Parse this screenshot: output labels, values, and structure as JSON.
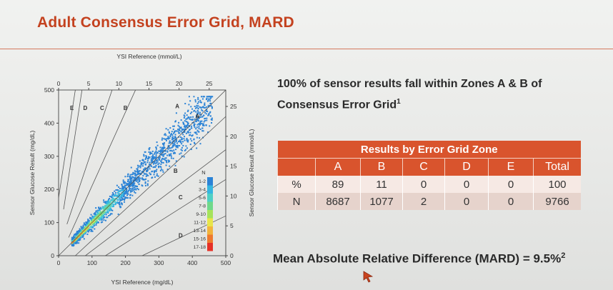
{
  "slide": {
    "title": "Adult Consensus Error Grid, MARD",
    "headline_prefix": "100% of sensor results fall within Zones A & B of Consensus Error Grid",
    "headline_sup": "1",
    "mard_prefix": "Mean Absolute Relative Difference (MARD) = 9.5%",
    "mard_sup": "2"
  },
  "results_table": {
    "caption": "Results by Error Grid Zone",
    "columns": [
      "",
      "A",
      "B",
      "C",
      "D",
      "E",
      "Total"
    ],
    "rows": [
      [
        "%",
        "89",
        "11",
        "0",
        "0",
        "0",
        "100"
      ],
      [
        "N",
        "8687",
        "1077",
        "2",
        "0",
        "0",
        "9766"
      ]
    ]
  },
  "chart_data": {
    "type": "scatter",
    "xlabel": "YSI Reference (mg/dL)",
    "ylabel": "Sensor Glucose Result (mg/dL)",
    "top_xlabel": "YSI Reference (mmol/L)",
    "right_ylabel": "Sensor Glucose Result (mmol/L)",
    "xlim": [
      0,
      500
    ],
    "ylim": [
      0,
      500
    ],
    "x_ticks": [
      "0",
      "100",
      "200",
      "300",
      "400",
      "500"
    ],
    "y_ticks": [
      "0",
      "100",
      "200",
      "300",
      "400",
      "500"
    ],
    "top_ticks": [
      "0",
      "5",
      "10",
      "15",
      "20",
      "25"
    ],
    "right_ticks": [
      "0",
      "5",
      "10",
      "15",
      "20",
      "25"
    ],
    "zone_labels": [
      "E",
      "D",
      "C",
      "B",
      "A",
      "A",
      "B",
      "C",
      "D"
    ],
    "density_legend_title": "N",
    "density_legend": [
      "1-2",
      "3-4",
      "5-6",
      "7-8",
      "9-10",
      "11-12",
      "13-14",
      "15-16",
      "17-18"
    ],
    "density_colors": [
      "#2b83d6",
      "#36b6e0",
      "#4fd0c5",
      "#6fd98a",
      "#a6e35b",
      "#e8e54a",
      "#f2b43d",
      "#ef7a2f",
      "#e63127"
    ],
    "point_cloud": {
      "description_x_range": [
        40,
        470
      ],
      "center_slope": 1.0
    }
  }
}
